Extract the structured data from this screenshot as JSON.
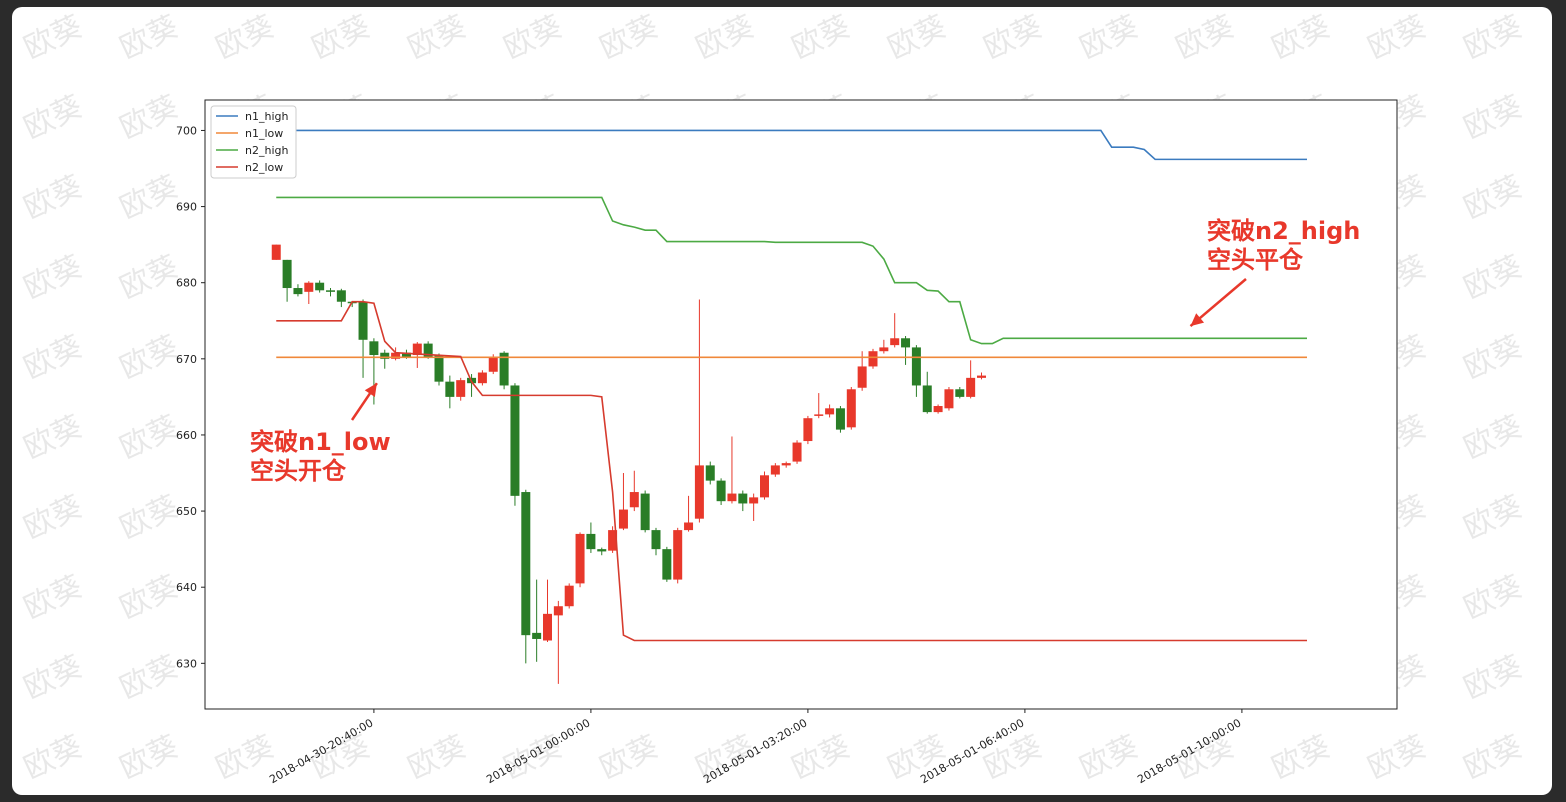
{
  "watermark": "欧葵",
  "colors": {
    "background": "#ffffff",
    "up": "#e8382b",
    "down": "#2a7d27",
    "n1_high": "#3b7bbf",
    "n1_low": "#f0883a",
    "n2_high": "#4caa44",
    "n2_low": "#d63b2e",
    "annotation": "#e8382b"
  },
  "annotations": [
    {
      "line1": "突破n1_low",
      "line2": "空头开仓",
      "candle_index": 10
    },
    {
      "line1": "突破n2_high",
      "line2": "空头平仓",
      "candle_index": 86
    }
  ],
  "chart_data": {
    "type": "candlestick",
    "title": "",
    "xlabel": "",
    "ylabel": "",
    "ylim": [
      624,
      704
    ],
    "yticks": [
      630,
      640,
      650,
      660,
      670,
      680,
      690,
      700
    ],
    "xticks": [
      "2018-04-30-20:40:00",
      "2018-05-01-00:00:00",
      "2018-05-01-03:20:00",
      "2018-05-01-06:40:00",
      "2018-05-01-10:00:00"
    ],
    "xtick_candle_index": [
      10,
      30,
      50,
      70,
      90
    ],
    "legend": [
      "n1_high",
      "n1_low",
      "n2_high",
      "n2_low"
    ],
    "legend_position": "top-left",
    "grid": false,
    "candles": [
      {
        "o": 683,
        "c": 685,
        "h": 685,
        "l": 683
      },
      {
        "o": 683,
        "c": 679.3,
        "h": 683,
        "l": 677.5
      },
      {
        "o": 679.3,
        "c": 678.5,
        "h": 679.8,
        "l": 678.2
      },
      {
        "o": 678.8,
        "c": 680,
        "h": 680.2,
        "l": 677.2
      },
      {
        "o": 680,
        "c": 679,
        "h": 680.3,
        "l": 678.7
      },
      {
        "o": 679,
        "c": 678.8,
        "h": 679.3,
        "l": 678.2
      },
      {
        "o": 679,
        "c": 677.5,
        "h": 679.2,
        "l": 676.8
      },
      {
        "o": 677.5,
        "c": 677.3,
        "h": 677.6,
        "l": 676.8
      },
      {
        "o": 677.5,
        "c": 672.5,
        "h": 677.8,
        "l": 667.5
      },
      {
        "o": 672.3,
        "c": 670.5,
        "h": 672.7,
        "l": 664
      },
      {
        "o": 670.8,
        "c": 670,
        "h": 671.2,
        "l": 668.7
      },
      {
        "o": 670,
        "c": 670.8,
        "h": 671.5,
        "l": 669.8
      },
      {
        "o": 670.8,
        "c": 670.3,
        "h": 671.2,
        "l": 670
      },
      {
        "o": 670.5,
        "c": 672,
        "h": 672.2,
        "l": 668.8
      },
      {
        "o": 672,
        "c": 670.3,
        "h": 672.3,
        "l": 670
      },
      {
        "o": 670.5,
        "c": 667,
        "h": 670.7,
        "l": 666.5
      },
      {
        "o": 667,
        "c": 665,
        "h": 667.8,
        "l": 663.5
      },
      {
        "o": 665,
        "c": 667.2,
        "h": 667.5,
        "l": 664.5
      },
      {
        "o": 667.5,
        "c": 666.8,
        "h": 668,
        "l": 665
      },
      {
        "o": 666.8,
        "c": 668.2,
        "h": 668.5,
        "l": 666.5
      },
      {
        "o": 668.3,
        "c": 670.3,
        "h": 670.6,
        "l": 668
      },
      {
        "o": 670.8,
        "c": 666.5,
        "h": 671,
        "l": 666
      },
      {
        "o": 666.5,
        "c": 652,
        "h": 666.8,
        "l": 650.7
      },
      {
        "o": 652.5,
        "c": 633.7,
        "h": 652.8,
        "l": 630
      },
      {
        "o": 634,
        "c": 633.2,
        "h": 641,
        "l": 630.2
      },
      {
        "o": 633,
        "c": 636.5,
        "h": 641,
        "l": 632.8
      },
      {
        "o": 636.3,
        "c": 637.5,
        "h": 638.2,
        "l": 627.3
      },
      {
        "o": 637.5,
        "c": 640.2,
        "h": 640.5,
        "l": 637.2
      },
      {
        "o": 640.5,
        "c": 647,
        "h": 647.2,
        "l": 640
      },
      {
        "o": 647,
        "c": 645,
        "h": 648.5,
        "l": 644.5
      },
      {
        "o": 645,
        "c": 644.7,
        "h": 645.2,
        "l": 644.2
      },
      {
        "o": 644.8,
        "c": 647.5,
        "h": 648,
        "l": 644.5
      },
      {
        "o": 647.7,
        "c": 650.2,
        "h": 655,
        "l": 647.5
      },
      {
        "o": 650.5,
        "c": 652.5,
        "h": 655.3,
        "l": 650
      },
      {
        "o": 652.3,
        "c": 647.5,
        "h": 652.7,
        "l": 647.2
      },
      {
        "o": 647.5,
        "c": 645,
        "h": 647.8,
        "l": 644.2
      },
      {
        "o": 645,
        "c": 641,
        "h": 645.3,
        "l": 640.7
      },
      {
        "o": 641,
        "c": 647.5,
        "h": 647.8,
        "l": 640.5
      },
      {
        "o": 647.5,
        "c": 648.5,
        "h": 652,
        "l": 647.3
      },
      {
        "o": 649,
        "c": 656,
        "h": 677.8,
        "l": 648.5
      },
      {
        "o": 656,
        "c": 654,
        "h": 656.5,
        "l": 653.5
      },
      {
        "o": 654,
        "c": 651.3,
        "h": 654.3,
        "l": 650.8
      },
      {
        "o": 651.3,
        "c": 652.3,
        "h": 659.8,
        "l": 651
      },
      {
        "o": 652.3,
        "c": 651,
        "h": 652.7,
        "l": 650
      },
      {
        "o": 651,
        "c": 651.8,
        "h": 652.3,
        "l": 648.7
      },
      {
        "o": 651.8,
        "c": 654.7,
        "h": 655.2,
        "l": 651.5
      },
      {
        "o": 654.8,
        "c": 656,
        "h": 656.3,
        "l": 654.5
      },
      {
        "o": 656,
        "c": 656.3,
        "h": 656.5,
        "l": 655.7
      },
      {
        "o": 656.5,
        "c": 659,
        "h": 659.3,
        "l": 656.2
      },
      {
        "o": 659.2,
        "c": 662.2,
        "h": 662.5,
        "l": 658.8
      },
      {
        "o": 662.5,
        "c": 662.7,
        "h": 665.5,
        "l": 662.2
      },
      {
        "o": 662.7,
        "c": 663.5,
        "h": 664,
        "l": 662.3
      },
      {
        "o": 663.5,
        "c": 660.7,
        "h": 663.8,
        "l": 660.3
      },
      {
        "o": 661,
        "c": 666,
        "h": 666.3,
        "l": 660.7
      },
      {
        "o": 666.2,
        "c": 669,
        "h": 671,
        "l": 665.8
      },
      {
        "o": 669,
        "c": 671,
        "h": 671.3,
        "l": 668.7
      },
      {
        "o": 671,
        "c": 671.5,
        "h": 672.5,
        "l": 670.7
      },
      {
        "o": 671.8,
        "c": 672.7,
        "h": 676,
        "l": 671.5
      },
      {
        "o": 672.7,
        "c": 671.5,
        "h": 673,
        "l": 669.2
      },
      {
        "o": 671.5,
        "c": 666.5,
        "h": 671.8,
        "l": 665
      },
      {
        "o": 666.5,
        "c": 663,
        "h": 668.3,
        "l": 662.8
      },
      {
        "o": 663,
        "c": 663.8,
        "h": 664,
        "l": 662.8
      },
      {
        "o": 663.5,
        "c": 666,
        "h": 666.3,
        "l": 663.2
      },
      {
        "o": 666,
        "c": 665,
        "h": 666.3,
        "l": 664.8
      },
      {
        "o": 665,
        "c": 667.5,
        "h": 669.8,
        "l": 664.8
      },
      {
        "o": 667.5,
        "c": 667.8,
        "h": 668.2,
        "l": 667.3
      }
    ],
    "series": [
      {
        "name": "n1_high",
        "points": [
          [
            1,
            700
          ],
          [
            77,
            700
          ],
          [
            78,
            697.8
          ],
          [
            80,
            697.8
          ],
          [
            81,
            697.5
          ],
          [
            82,
            696.2
          ],
          [
            96,
            696.2
          ]
        ]
      },
      {
        "name": "n1_low",
        "points": [
          [
            1,
            670.2
          ],
          [
            96,
            670.2
          ]
        ]
      },
      {
        "name": "n2_high",
        "points": [
          [
            1,
            691.2
          ],
          [
            31,
            691.2
          ],
          [
            32,
            688.1
          ],
          [
            33,
            687.6
          ],
          [
            34,
            687.3
          ],
          [
            35,
            686.9
          ],
          [
            36,
            686.9
          ],
          [
            37,
            685.4
          ],
          [
            45,
            685.4
          ],
          [
            46,
            685.4
          ],
          [
            47,
            685.3
          ],
          [
            55,
            685.3
          ],
          [
            56,
            684.8
          ],
          [
            57,
            683.1
          ],
          [
            58,
            680
          ],
          [
            59,
            680
          ],
          [
            60,
            680
          ],
          [
            61,
            679
          ],
          [
            62,
            678.9
          ],
          [
            63,
            677.5
          ],
          [
            64,
            677.5
          ],
          [
            65,
            672.5
          ],
          [
            66,
            672
          ],
          [
            67,
            672
          ],
          [
            68,
            672.7
          ],
          [
            96,
            672.7
          ]
        ]
      },
      {
        "name": "n2_low",
        "points": [
          [
            1,
            675
          ],
          [
            7,
            675
          ],
          [
            8,
            677.5
          ],
          [
            9,
            677.5
          ],
          [
            10,
            677.3
          ],
          [
            11,
            672.3
          ],
          [
            12,
            670.8
          ],
          [
            18,
            670.3
          ],
          [
            19,
            667
          ],
          [
            20,
            665.2
          ],
          [
            30,
            665.2
          ],
          [
            31,
            665
          ],
          [
            32,
            652.5
          ],
          [
            33,
            633.7
          ],
          [
            34,
            633
          ],
          [
            96,
            633
          ]
        ]
      }
    ]
  }
}
